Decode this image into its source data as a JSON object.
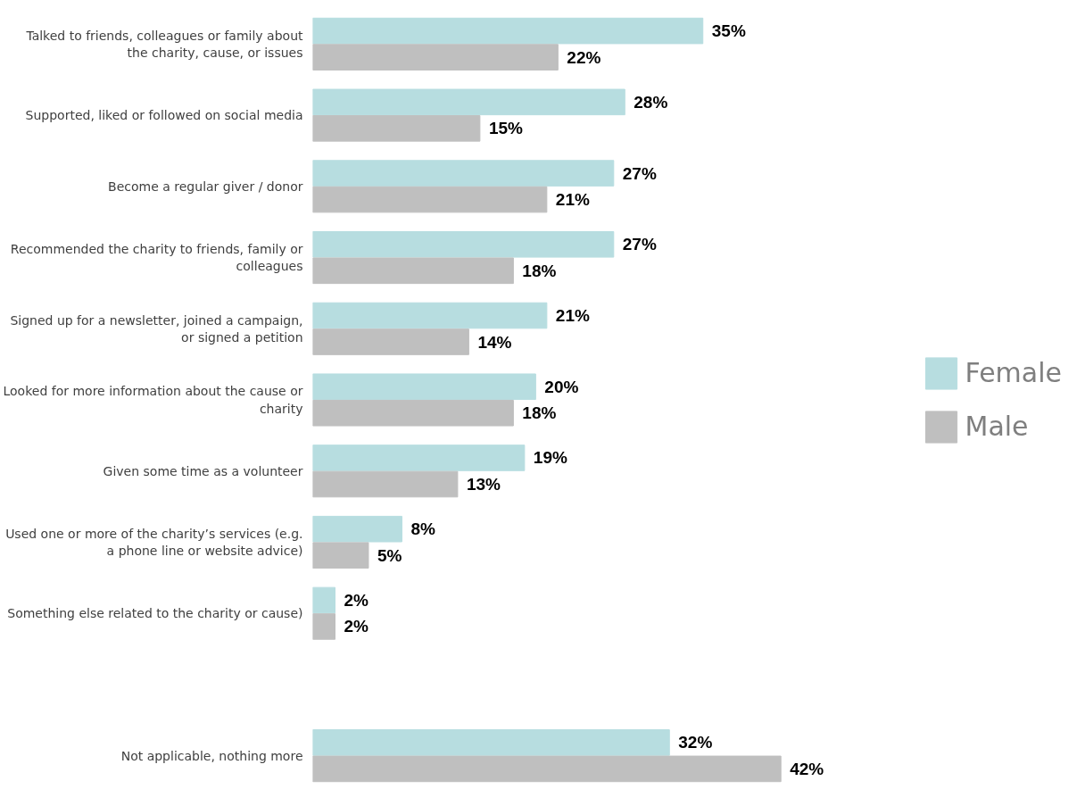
{
  "chart_data": {
    "type": "bar",
    "orientation": "horizontal",
    "categories": [
      "Talked to friends, colleagues or family about the charity, cause, or issues",
      "Supported, liked or followed on social media",
      "Become a regular giver / donor",
      "Recommended the charity to friends, family or colleagues",
      "Signed up for a newsletter, joined a campaign, or signed a petition",
      "Looked for more information about the cause or charity",
      "Given some time as a volunteer",
      "Used one or more of the charity’s services (e.g. a phone line or website advice)",
      "Something else related to the charity or cause)",
      null,
      "Not applicable, nothing more"
    ],
    "series": [
      {
        "name": "Female",
        "color": "#b7dde0",
        "values": [
          35,
          28,
          27,
          27,
          21,
          20,
          19,
          8,
          2,
          null,
          32
        ],
        "value_labels": [
          "35%",
          "28%",
          "27%",
          "27%",
          "21%",
          "20%",
          "19%",
          "8%",
          "2%",
          null,
          "32%"
        ]
      },
      {
        "name": "Male",
        "color": "#bfbfbf",
        "values": [
          22,
          15,
          21,
          18,
          14,
          18,
          13,
          5,
          2,
          null,
          42
        ],
        "value_labels": [
          "22%",
          "15%",
          "21%",
          "18%",
          "14%",
          "18%",
          "13%",
          "5%",
          "2%",
          null,
          "42%"
        ]
      }
    ],
    "legend": "right"
  }
}
